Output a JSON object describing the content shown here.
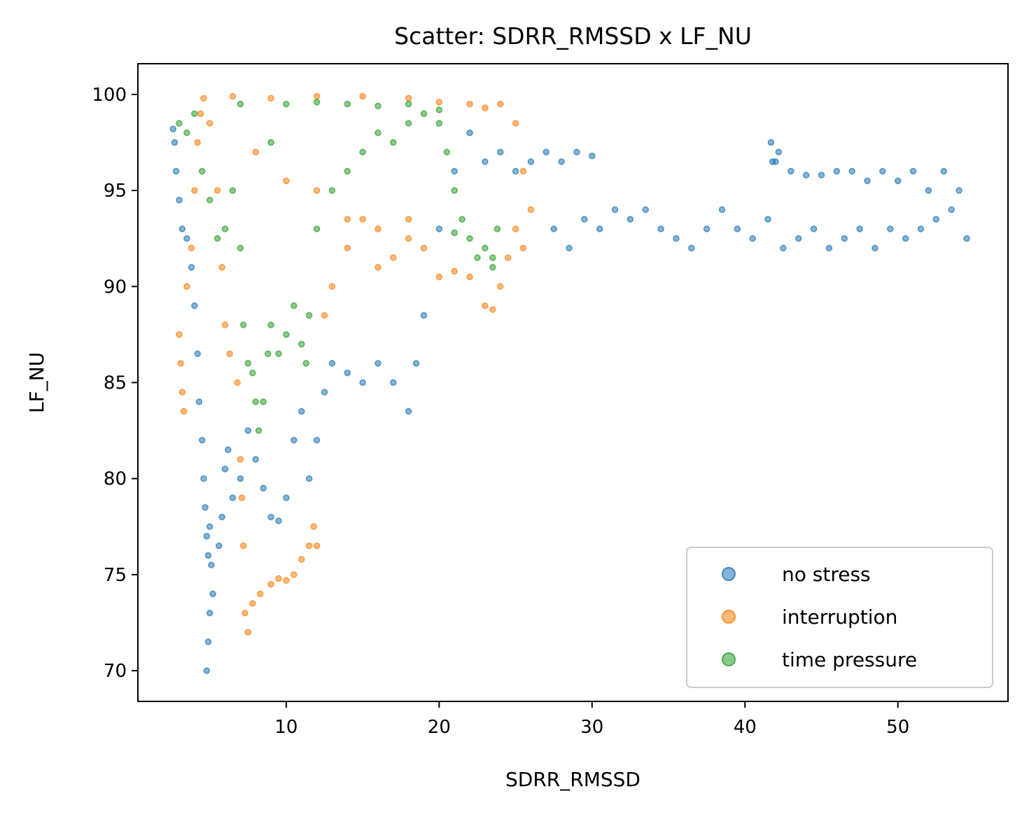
{
  "chart_data": {
    "type": "scatter",
    "title": "Scatter: SDRR_RMSSD x LF_NU",
    "xlabel": "SDRR_RMSSD",
    "ylabel": "LF_NU",
    "xlim": [
      0.3,
      57.2
    ],
    "ylim": [
      68.4,
      101.6
    ],
    "xticks": [
      10,
      20,
      30,
      40,
      50
    ],
    "yticks": [
      70,
      75,
      80,
      85,
      90,
      95,
      100
    ],
    "grid": false,
    "legend_position": "lower-right",
    "series": [
      {
        "name": "no stress",
        "color": "#1f77b4",
        "points": [
          [
            2.6,
            98.2
          ],
          [
            2.7,
            97.5
          ],
          [
            2.8,
            96.0
          ],
          [
            3.0,
            94.5
          ],
          [
            3.2,
            93.0
          ],
          [
            3.5,
            92.5
          ],
          [
            3.8,
            91.0
          ],
          [
            4.0,
            89.0
          ],
          [
            4.2,
            86.5
          ],
          [
            4.3,
            84.0
          ],
          [
            4.5,
            82.0
          ],
          [
            4.6,
            80.0
          ],
          [
            4.7,
            78.5
          ],
          [
            4.8,
            77.0
          ],
          [
            4.9,
            76.0
          ],
          [
            5.0,
            77.5
          ],
          [
            5.1,
            75.5
          ],
          [
            5.0,
            73.0
          ],
          [
            4.9,
            71.5
          ],
          [
            4.8,
            70.0
          ],
          [
            5.2,
            74.0
          ],
          [
            5.6,
            76.5
          ],
          [
            5.8,
            78.0
          ],
          [
            6.0,
            80.5
          ],
          [
            6.2,
            81.5
          ],
          [
            6.5,
            79.0
          ],
          [
            7.0,
            80.0
          ],
          [
            7.5,
            82.5
          ],
          [
            8.0,
            81.0
          ],
          [
            8.5,
            79.5
          ],
          [
            9.0,
            78.0
          ],
          [
            9.5,
            77.8
          ],
          [
            10.0,
            79.0
          ],
          [
            10.5,
            82.0
          ],
          [
            11.0,
            83.5
          ],
          [
            11.5,
            80.0
          ],
          [
            12.0,
            82.0
          ],
          [
            12.5,
            84.5
          ],
          [
            13.0,
            86.0
          ],
          [
            14.0,
            85.5
          ],
          [
            15.0,
            85.0
          ],
          [
            16.0,
            86.0
          ],
          [
            17.0,
            85.0
          ],
          [
            18.0,
            83.5
          ],
          [
            18.5,
            86.0
          ],
          [
            19.0,
            88.5
          ],
          [
            20.0,
            93.0
          ],
          [
            21.0,
            96.0
          ],
          [
            22.0,
            98.0
          ],
          [
            23.0,
            96.5
          ],
          [
            24.0,
            97.0
          ],
          [
            25.0,
            96.0
          ],
          [
            26.0,
            96.5
          ],
          [
            27.0,
            97.0
          ],
          [
            28.0,
            96.5
          ],
          [
            29.0,
            97.0
          ],
          [
            30.0,
            96.8
          ],
          [
            27.5,
            93.0
          ],
          [
            28.5,
            92.0
          ],
          [
            29.5,
            93.5
          ],
          [
            30.5,
            93.0
          ],
          [
            31.5,
            94.0
          ],
          [
            32.5,
            93.5
          ],
          [
            33.5,
            94.0
          ],
          [
            34.5,
            93.0
          ],
          [
            35.5,
            92.5
          ],
          [
            36.5,
            92.0
          ],
          [
            37.5,
            93.0
          ],
          [
            38.5,
            94.0
          ],
          [
            39.5,
            93.0
          ],
          [
            40.5,
            92.5
          ],
          [
            41.5,
            93.5
          ],
          [
            42.5,
            92.0
          ],
          [
            43.5,
            92.5
          ],
          [
            44.5,
            93.0
          ],
          [
            45.5,
            92.0
          ],
          [
            46.5,
            92.5
          ],
          [
            47.5,
            93.0
          ],
          [
            48.5,
            92.0
          ],
          [
            49.5,
            93.0
          ],
          [
            50.5,
            92.5
          ],
          [
            51.5,
            93.0
          ],
          [
            52.5,
            93.5
          ],
          [
            53.5,
            94.0
          ],
          [
            54.5,
            92.5
          ],
          [
            54.0,
            95.0
          ],
          [
            53.0,
            96.0
          ],
          [
            52.0,
            95.0
          ],
          [
            51.0,
            96.0
          ],
          [
            50.0,
            95.5
          ],
          [
            49.0,
            96.0
          ],
          [
            48.0,
            95.5
          ],
          [
            47.0,
            96.0
          ],
          [
            46.0,
            96.0
          ],
          [
            45.0,
            95.8
          ],
          [
            44.0,
            95.8
          ],
          [
            43.0,
            96.0
          ],
          [
            42.0,
            96.5
          ],
          [
            41.7,
            97.5
          ],
          [
            41.8,
            96.5
          ],
          [
            42.2,
            97.0
          ]
        ]
      },
      {
        "name": "interruption",
        "color": "#ff7f0e",
        "points": [
          [
            3.0,
            87.5
          ],
          [
            3.1,
            86.0
          ],
          [
            3.2,
            84.5
          ],
          [
            3.3,
            83.5
          ],
          [
            3.5,
            90.0
          ],
          [
            3.8,
            92.0
          ],
          [
            4.0,
            95.0
          ],
          [
            4.2,
            97.5
          ],
          [
            4.4,
            99.0
          ],
          [
            4.6,
            99.8
          ],
          [
            5.0,
            98.5
          ],
          [
            5.5,
            95.0
          ],
          [
            5.8,
            91.0
          ],
          [
            6.0,
            88.0
          ],
          [
            6.3,
            86.5
          ],
          [
            6.8,
            85.0
          ],
          [
            7.0,
            81.0
          ],
          [
            7.1,
            79.0
          ],
          [
            7.2,
            76.5
          ],
          [
            7.3,
            73.0
          ],
          [
            7.5,
            72.0
          ],
          [
            7.8,
            73.5
          ],
          [
            8.3,
            74.0
          ],
          [
            9.0,
            74.5
          ],
          [
            9.5,
            74.8
          ],
          [
            10.0,
            74.7
          ],
          [
            10.5,
            75.0
          ],
          [
            11.0,
            75.8
          ],
          [
            11.5,
            76.5
          ],
          [
            11.8,
            77.5
          ],
          [
            12.0,
            76.5
          ],
          [
            12.5,
            88.5
          ],
          [
            13.0,
            90.0
          ],
          [
            14.0,
            92.0
          ],
          [
            15.0,
            93.5
          ],
          [
            16.0,
            93.0
          ],
          [
            17.0,
            91.5
          ],
          [
            18.0,
            93.5
          ],
          [
            19.0,
            92.0
          ],
          [
            20.0,
            90.5
          ],
          [
            21.0,
            90.8
          ],
          [
            22.0,
            90.5
          ],
          [
            23.0,
            89.0
          ],
          [
            23.5,
            88.8
          ],
          [
            24.0,
            90.0
          ],
          [
            24.5,
            91.5
          ],
          [
            25.0,
            93.0
          ],
          [
            25.5,
            92.0
          ],
          [
            26.0,
            94.0
          ],
          [
            25.5,
            96.0
          ],
          [
            25.0,
            98.5
          ],
          [
            24.0,
            99.5
          ],
          [
            23.0,
            99.3
          ],
          [
            22.0,
            99.5
          ],
          [
            20.0,
            99.6
          ],
          [
            18.0,
            99.8
          ],
          [
            15.0,
            99.9
          ],
          [
            12.0,
            99.9
          ],
          [
            9.0,
            99.8
          ],
          [
            6.5,
            99.9
          ],
          [
            8.0,
            97.0
          ],
          [
            10.0,
            95.5
          ],
          [
            12.0,
            95.0
          ],
          [
            14.0,
            93.5
          ],
          [
            16.0,
            91.0
          ],
          [
            18.0,
            92.5
          ]
        ]
      },
      {
        "name": "time pressure",
        "color": "#2ca02c",
        "points": [
          [
            3.0,
            98.5
          ],
          [
            3.5,
            98.0
          ],
          [
            4.0,
            99.0
          ],
          [
            4.5,
            96.0
          ],
          [
            5.0,
            94.5
          ],
          [
            5.5,
            92.5
          ],
          [
            6.0,
            93.0
          ],
          [
            6.5,
            95.0
          ],
          [
            7.0,
            92.0
          ],
          [
            7.2,
            88.0
          ],
          [
            7.5,
            86.0
          ],
          [
            7.8,
            85.5
          ],
          [
            8.0,
            84.0
          ],
          [
            8.2,
            82.5
          ],
          [
            8.5,
            84.0
          ],
          [
            8.8,
            86.5
          ],
          [
            9.0,
            88.0
          ],
          [
            9.5,
            86.5
          ],
          [
            10.0,
            87.5
          ],
          [
            10.5,
            89.0
          ],
          [
            11.0,
            87.0
          ],
          [
            11.3,
            86.0
          ],
          [
            11.5,
            88.5
          ],
          [
            12.0,
            93.0
          ],
          [
            13.0,
            95.0
          ],
          [
            14.0,
            96.0
          ],
          [
            15.0,
            97.0
          ],
          [
            16.0,
            98.0
          ],
          [
            17.0,
            97.5
          ],
          [
            18.0,
            98.5
          ],
          [
            19.0,
            99.0
          ],
          [
            20.0,
            98.5
          ],
          [
            20.5,
            97.0
          ],
          [
            21.0,
            95.0
          ],
          [
            21.5,
            93.5
          ],
          [
            22.0,
            92.5
          ],
          [
            22.5,
            91.5
          ],
          [
            23.0,
            92.0
          ],
          [
            23.5,
            91.0
          ],
          [
            23.8,
            93.0
          ],
          [
            23.5,
            91.5
          ],
          [
            21.0,
            92.8
          ],
          [
            10.0,
            99.5
          ],
          [
            12.0,
            99.6
          ],
          [
            14.0,
            99.5
          ],
          [
            16.0,
            99.4
          ],
          [
            18.0,
            99.5
          ],
          [
            20.0,
            99.2
          ],
          [
            7.0,
            99.5
          ],
          [
            9.0,
            97.5
          ]
        ]
      }
    ]
  }
}
